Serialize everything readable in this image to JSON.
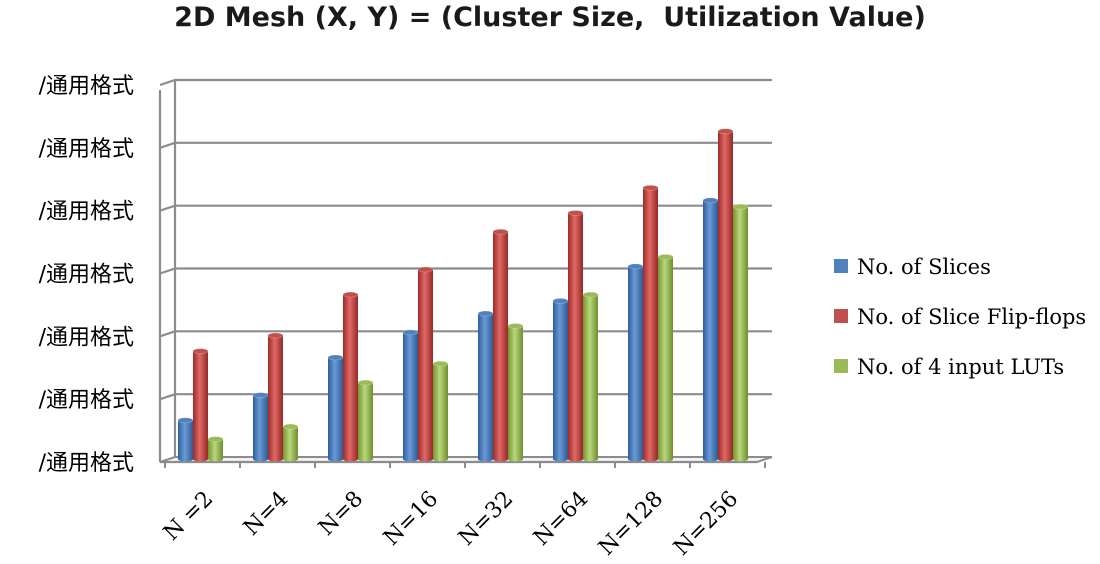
{
  "chart_data": {
    "type": "bar",
    "title": "2D Mesh (X, Y) = (Cluster Size,  Utilization Value)",
    "categories": [
      "N =2",
      "N=4",
      "N=8",
      "N=16",
      "N=32",
      "N=64",
      "N=128",
      "N=256"
    ],
    "y_tick_labels": [
      "/通用格式",
      "/通用格式",
      "/通用格式",
      "/通用格式",
      "/通用格式",
      "/通用格式",
      "/通用格式"
    ],
    "ylim": [
      0,
      6
    ],
    "grid": true,
    "legend_position": "right",
    "series": [
      {
        "name": "No. of Slices",
        "color": "#4f81bd",
        "values": [
          0.6,
          1.0,
          1.6,
          2.0,
          2.3,
          2.5,
          3.05,
          4.1
        ]
      },
      {
        "name": "No. of Slice Flip-flops",
        "color": "#c0504d",
        "values": [
          1.7,
          1.95,
          2.6,
          3.0,
          3.6,
          3.9,
          4.3,
          5.2
        ]
      },
      {
        "name": "No. of 4 input LUTs",
        "color": "#9bbb59",
        "values": [
          0.3,
          0.5,
          1.2,
          1.5,
          2.1,
          2.6,
          3.2,
          4.0
        ]
      }
    ]
  }
}
